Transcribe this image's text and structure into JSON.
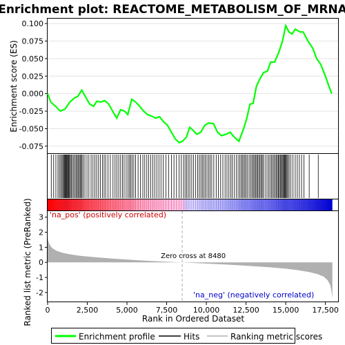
{
  "chart_data": {
    "type": "line",
    "title": "Enrichment plot: REACTOME_METABOLISM_OF_MRNA",
    "panels": {
      "enrichment": {
        "ylabel": "Enrichment score (ES)",
        "ylim": [
          -0.085,
          0.107
        ],
        "yticks": [
          -0.075,
          -0.05,
          -0.025,
          0.0,
          0.025,
          0.05,
          0.075,
          0.1
        ],
        "ytick_labels": [
          "-0.075",
          "-0.050",
          "-0.025",
          "0.000",
          "0.025",
          "0.050",
          "0.075",
          "0.100"
        ],
        "series": [
          {
            "name": "Enrichment profile",
            "color": "#00ff00",
            "x": [
              0,
              200,
              500,
              800,
              1100,
              1400,
              1700,
              1900,
              2150,
              2400,
              2650,
              2900,
              3100,
              3350,
              3600,
              3850,
              4100,
              4350,
              4600,
              4850,
              5050,
              5300,
              5550,
              5800,
              6050,
              6300,
              6550,
              6800,
              7050,
              7300,
              7550,
              7800,
              8050,
              8300,
              8500,
              8750,
              8950,
              9150,
              9400,
              9650,
              9900,
              10150,
              10450,
              10700,
              10950,
              11250,
              11500,
              11750,
              12050,
              12350,
              12550,
              12750,
              12950,
              13150,
              13350,
              13600,
              13850,
              14050,
              14300,
              14550,
              14800,
              15000,
              15200,
              15400,
              15600,
              15900,
              16100,
              16400,
              16700,
              16950,
              17200,
              17500,
              17700,
              17900
            ],
            "y": [
              0.0,
              -0.012,
              -0.018,
              -0.025,
              -0.022,
              -0.012,
              -0.006,
              -0.004,
              0.005,
              -0.005,
              -0.015,
              -0.018,
              -0.011,
              -0.012,
              -0.01,
              -0.015,
              -0.025,
              -0.035,
              -0.023,
              -0.025,
              -0.03,
              -0.008,
              -0.012,
              -0.018,
              -0.025,
              -0.03,
              -0.032,
              -0.035,
              -0.033,
              -0.04,
              -0.045,
              -0.055,
              -0.065,
              -0.07,
              -0.068,
              -0.062,
              -0.048,
              -0.052,
              -0.058,
              -0.055,
              -0.045,
              -0.042,
              -0.043,
              -0.055,
              -0.06,
              -0.058,
              -0.055,
              -0.062,
              -0.068,
              -0.05,
              -0.035,
              -0.015,
              -0.014,
              0.01,
              0.02,
              0.03,
              0.032,
              0.045,
              0.045,
              0.058,
              0.075,
              0.097,
              0.088,
              0.085,
              0.092,
              0.088,
              0.088,
              0.075,
              0.065,
              0.05,
              0.042,
              0.025,
              0.012,
              0.0
            ]
          }
        ]
      },
      "hits": {
        "name": "Hits",
        "positions": [
          230,
          380,
          520,
          650,
          740,
          820,
          900,
          960,
          1010,
          1060,
          1110,
          1150,
          1190,
          1230,
          1280,
          1330,
          1380,
          1430,
          1490,
          1560,
          1640,
          1720,
          1790,
          1860,
          1920,
          1990,
          2050,
          2110,
          2170,
          2250,
          2350,
          2480,
          2600,
          2740,
          2860,
          2980,
          3090,
          3210,
          3330,
          3450,
          3560,
          3660,
          3800,
          3950,
          4120,
          4250,
          4360,
          4480,
          4600,
          4720,
          4820,
          4950,
          5070,
          5160,
          5240,
          5330,
          5430,
          5540,
          5700,
          5850,
          6000,
          6120,
          6250,
          6370,
          6500,
          6630,
          6750,
          6880,
          7010,
          7140,
          7280,
          7450,
          7620,
          7800,
          7960,
          8120,
          8280,
          8420,
          8560,
          8660,
          8760,
          8860,
          8960,
          9080,
          9200,
          9330,
          9450,
          9560,
          9660,
          9750,
          9840,
          9940,
          10040,
          10140,
          10240,
          10340,
          10470,
          10620,
          10760,
          10900,
          11040,
          11180,
          11300,
          11420,
          11530,
          11630,
          11750,
          11880,
          12000,
          12100,
          12190,
          12270,
          12350,
          12430,
          12510,
          12600,
          12700,
          12800,
          12880,
          12960,
          13030,
          13100,
          13170,
          13240,
          13310,
          13380,
          13450,
          13520,
          13590,
          13700,
          13820,
          13920,
          14010,
          14100,
          14180,
          14260,
          14340,
          14410,
          14480,
          14540,
          14600,
          14660,
          14720,
          14780,
          14830,
          14880,
          14930,
          14980,
          15030,
          15080,
          15140,
          15220,
          15330,
          15460,
          15600,
          15730,
          15860,
          16000,
          16150,
          16480,
          17050
        ]
      },
      "ranked_metric": {
        "name": "Ranking metric scores",
        "xlabel": "Rank in Ordered Dataset",
        "ylabel": "Ranked list metric (PreRanked)",
        "ylim": [
          -2.6,
          3.4
        ],
        "yticks": [
          -2,
          -1,
          0,
          1,
          2,
          3
        ],
        "ytick_labels": [
          "-2",
          "-1",
          "0",
          "1",
          "2",
          "3"
        ],
        "x": [
          0,
          40,
          100,
          200,
          350,
          600,
          1000,
          1500,
          2000,
          3000,
          4000,
          5000,
          6000,
          7000,
          8000,
          8480,
          9000,
          10000,
          11000,
          12000,
          13000,
          14000,
          15000,
          15800,
          16500,
          17000,
          17400,
          17650,
          17800,
          17880,
          17940
        ],
        "values": [
          1.7,
          1.45,
          1.25,
          1.05,
          0.9,
          0.75,
          0.62,
          0.52,
          0.44,
          0.34,
          0.26,
          0.19,
          0.12,
          0.07,
          0.02,
          0.0,
          -0.03,
          -0.08,
          -0.13,
          -0.19,
          -0.26,
          -0.33,
          -0.42,
          -0.52,
          -0.65,
          -0.78,
          -0.95,
          -1.2,
          -1.5,
          -1.9,
          -2.4
        ],
        "zero_cross_label": "Zero cross at 8480",
        "zero_cross": 8480,
        "pos_label": "'na_pos' (positively correlated)",
        "neg_label": "'na_neg' (negatively correlated)"
      }
    },
    "xlim": [
      0,
      18300
    ],
    "xticks": [
      0,
      2500,
      5000,
      7500,
      10000,
      12500,
      15000,
      17500
    ],
    "xtick_labels": [
      "0",
      "2,500",
      "5,000",
      "7,500",
      "10,000",
      "12,500",
      "15,000",
      "17,500"
    ],
    "n_ranked": 17940,
    "legend": {
      "placement": "bottom",
      "items": [
        {
          "label": "Enrichment profile",
          "color": "#00ff00"
        },
        {
          "label": "Hits",
          "color": "#000000"
        },
        {
          "label": "Ranking metric scores",
          "color": "#b0b0b0"
        }
      ]
    },
    "colors": {
      "profile": "#00ff00",
      "hits": "#000000",
      "metric_fill": "#b0b0b0",
      "pos_text": "#cc0000",
      "neg_text": "#0000cc",
      "zero_line": "#aaaaaa"
    }
  }
}
